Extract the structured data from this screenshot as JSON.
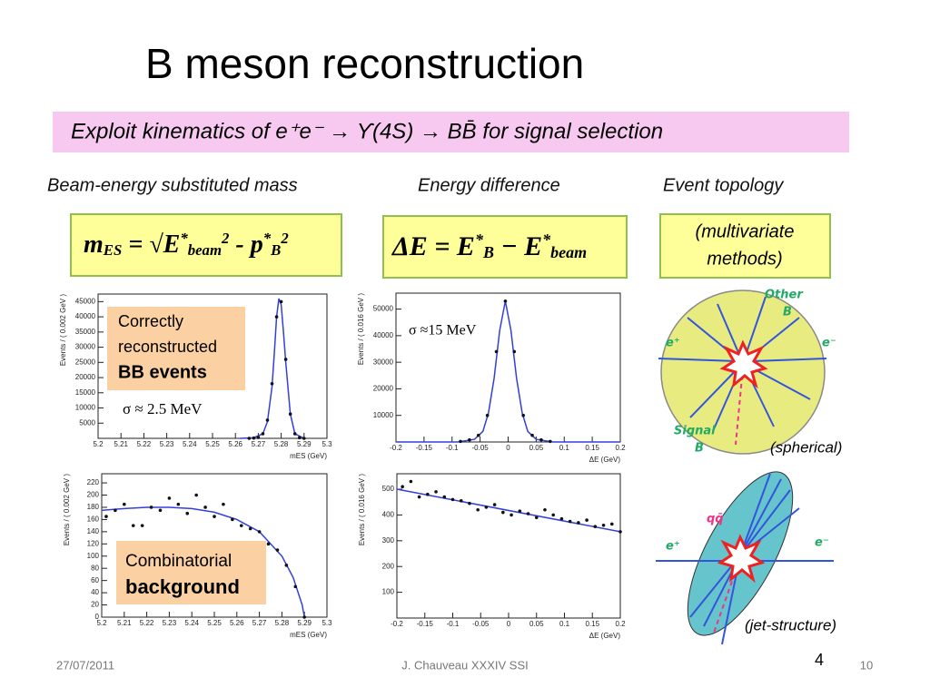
{
  "title": "B meson reconstruction",
  "banner": "Exploit kinematics of e⁺e⁻ → ϒ(4S) → BB̄   for signal selection",
  "headings": [
    "Beam-energy substituted mass",
    "Energy difference",
    "Event topology"
  ],
  "formulas": [
    [
      {
        "text": "m"
      },
      {
        "text": "ES",
        "pos": "sub"
      },
      {
        "text": " = √"
      },
      {
        "text": "E"
      },
      {
        "text": "*",
        "pos": "sup"
      },
      {
        "text": "beam",
        "pos": "sub"
      },
      {
        "text": "2",
        "pos": "sup"
      },
      {
        "text": " - p"
      },
      {
        "text": "*",
        "pos": "sup"
      },
      {
        "text": "B",
        "pos": "sub"
      },
      {
        "text": "2",
        "pos": "sup"
      }
    ],
    [
      {
        "text": "ΔE = E"
      },
      {
        "text": "*",
        "pos": "sup"
      },
      {
        "text": "B",
        "pos": "sub"
      },
      {
        "text": " − E"
      },
      {
        "text": "*",
        "pos": "sup"
      },
      {
        "text": "beam",
        "pos": "sub"
      }
    ]
  ],
  "topology_box": [
    "(multivariate",
    "methods)"
  ],
  "topology": {
    "spherical": {
      "other": [
        "Other",
        "B"
      ],
      "e_plus": "e⁺",
      "e_minus": "e⁻",
      "signal": [
        "Signal",
        "B"
      ],
      "caption": "(spherical)"
    },
    "jet": {
      "qq": "qq̄",
      "e_plus": "e⁺",
      "e_minus": "e⁻",
      "caption": "(jet-structure)"
    }
  },
  "chart_data": [
    {
      "type": "scatter",
      "xlabel": "mES (GeV)",
      "ylabel": "Events / ( 0.002 GeV )",
      "xlim": [
        5.2,
        5.3
      ],
      "ylim": [
        0,
        47500
      ],
      "xticks": [
        5.2,
        5.21,
        5.22,
        5.23,
        5.24,
        5.25,
        5.26,
        5.27,
        5.28,
        5.29,
        5.3
      ],
      "yticks": [
        5000,
        10000,
        15000,
        20000,
        25000,
        30000,
        35000,
        40000,
        45000
      ],
      "annotations": [
        "Correctly",
        "reconstructed",
        "BB events",
        "σ ≈ 2.5 MeV"
      ],
      "series": [
        {
          "style": "line",
          "color": "#3340d8",
          "x": [
            5.262,
            5.268,
            5.272,
            5.274,
            5.276,
            5.277,
            5.278,
            5.279,
            5.28,
            5.281,
            5.282,
            5.284,
            5.286,
            5.29
          ],
          "values": [
            0,
            200,
            1500,
            5500,
            17000,
            28000,
            40000,
            46000,
            44000,
            35000,
            25000,
            8000,
            1500,
            0
          ]
        },
        {
          "style": "points",
          "color": "#111111",
          "x": [
            5.266,
            5.268,
            5.27,
            5.272,
            5.274,
            5.276,
            5.278,
            5.28,
            5.282,
            5.284,
            5.286,
            5.288,
            5.29
          ],
          "values": [
            0,
            100,
            300,
            1500,
            6000,
            18000,
            40000,
            45000,
            26000,
            8000,
            1500,
            200,
            0
          ]
        }
      ]
    },
    {
      "type": "scatter",
      "xlabel": "ΔE (GeV)",
      "ylabel": "Events / ( 0.016 GeV )",
      "xlim": [
        -0.2,
        0.2
      ],
      "ylim": [
        0,
        56000
      ],
      "xticks": [
        -0.2,
        -0.15,
        -0.1,
        -0.05,
        0,
        0.05,
        0.1,
        0.15,
        0.2
      ],
      "yticks": [
        10000,
        20000,
        30000,
        40000,
        50000
      ],
      "annotations": [
        "σ ≈15 MeV"
      ],
      "series": [
        {
          "style": "line",
          "color": "#3340d8",
          "x": [
            -0.2,
            -0.09,
            -0.06,
            -0.045,
            -0.035,
            -0.025,
            -0.015,
            -0.005,
            0.005,
            0.015,
            0.025,
            0.035,
            0.05,
            0.08,
            0.2
          ],
          "values": [
            0,
            0,
            1000,
            4000,
            11000,
            24000,
            42000,
            53000,
            42000,
            24000,
            11000,
            4000,
            1000,
            0,
            0
          ]
        },
        {
          "style": "points",
          "color": "#111111",
          "x": [
            -0.085,
            -0.069,
            -0.053,
            -0.037,
            -0.021,
            -0.005,
            0.011,
            0.027,
            0.043,
            0.059,
            0.075
          ],
          "values": [
            200,
            800,
            2500,
            10000,
            34000,
            53000,
            34000,
            10000,
            2500,
            800,
            200
          ]
        }
      ]
    },
    {
      "type": "scatter",
      "xlabel": "mES (GeV)",
      "ylabel": "Events / ( 0.002 GeV )",
      "xlim": [
        5.2,
        5.3
      ],
      "ylim": [
        0,
        235
      ],
      "xticks": [
        5.2,
        5.21,
        5.22,
        5.23,
        5.24,
        5.25,
        5.26,
        5.27,
        5.28,
        5.29,
        5.3
      ],
      "yticks": [
        0,
        20,
        40,
        60,
        80,
        100,
        120,
        140,
        160,
        180,
        200,
        220
      ],
      "annotations": [
        "Combinatorial",
        "background"
      ],
      "series": [
        {
          "style": "line",
          "color": "#3340d8",
          "x": [
            5.2,
            5.21,
            5.22,
            5.23,
            5.24,
            5.25,
            5.26,
            5.27,
            5.28,
            5.285,
            5.289,
            5.29
          ],
          "values": [
            175,
            178,
            180,
            180,
            178,
            172,
            160,
            140,
            100,
            65,
            20,
            0
          ]
        },
        {
          "style": "points",
          "color": "#111111",
          "x": [
            5.202,
            5.206,
            5.21,
            5.214,
            5.218,
            5.222,
            5.226,
            5.23,
            5.234,
            5.238,
            5.242,
            5.246,
            5.25,
            5.254,
            5.258,
            5.262,
            5.266,
            5.27,
            5.274,
            5.278,
            5.282,
            5.286,
            5.29
          ],
          "values": [
            165,
            175,
            185,
            150,
            150,
            180,
            175,
            195,
            185,
            170,
            200,
            180,
            165,
            185,
            160,
            150,
            145,
            140,
            120,
            110,
            85,
            50,
            0
          ]
        }
      ]
    },
    {
      "type": "scatter",
      "xlabel": "ΔE (GeV)",
      "ylabel": "Events / ( 0.016 GeV )",
      "xlim": [
        -0.2,
        0.2
      ],
      "ylim": [
        0,
        560
      ],
      "xticks": [
        -0.2,
        -0.15,
        -0.1,
        -0.05,
        0,
        0.05,
        0.1,
        0.15,
        0.2
      ],
      "yticks": [
        100,
        200,
        300,
        400,
        500
      ],
      "annotations": [],
      "series": [
        {
          "style": "line",
          "color": "#3340d8",
          "x": [
            -0.2,
            0.2
          ],
          "values": [
            500,
            335
          ]
        },
        {
          "style": "points",
          "color": "#111111",
          "x": [
            -0.19,
            -0.175,
            -0.16,
            -0.145,
            -0.13,
            -0.115,
            -0.1,
            -0.085,
            -0.07,
            -0.055,
            -0.04,
            -0.025,
            -0.01,
            0.005,
            0.02,
            0.035,
            0.05,
            0.065,
            0.08,
            0.095,
            0.11,
            0.125,
            0.14,
            0.155,
            0.17,
            0.185,
            0.2
          ],
          "values": [
            510,
            530,
            470,
            480,
            490,
            470,
            460,
            455,
            445,
            420,
            430,
            440,
            410,
            400,
            415,
            405,
            390,
            420,
            400,
            385,
            375,
            370,
            380,
            355,
            360,
            365,
            335
          ]
        }
      ]
    }
  ],
  "footer": {
    "date": "27/07/2011",
    "author": "J. Chauveau XXXIV SSI",
    "page": "4",
    "total": "10"
  }
}
